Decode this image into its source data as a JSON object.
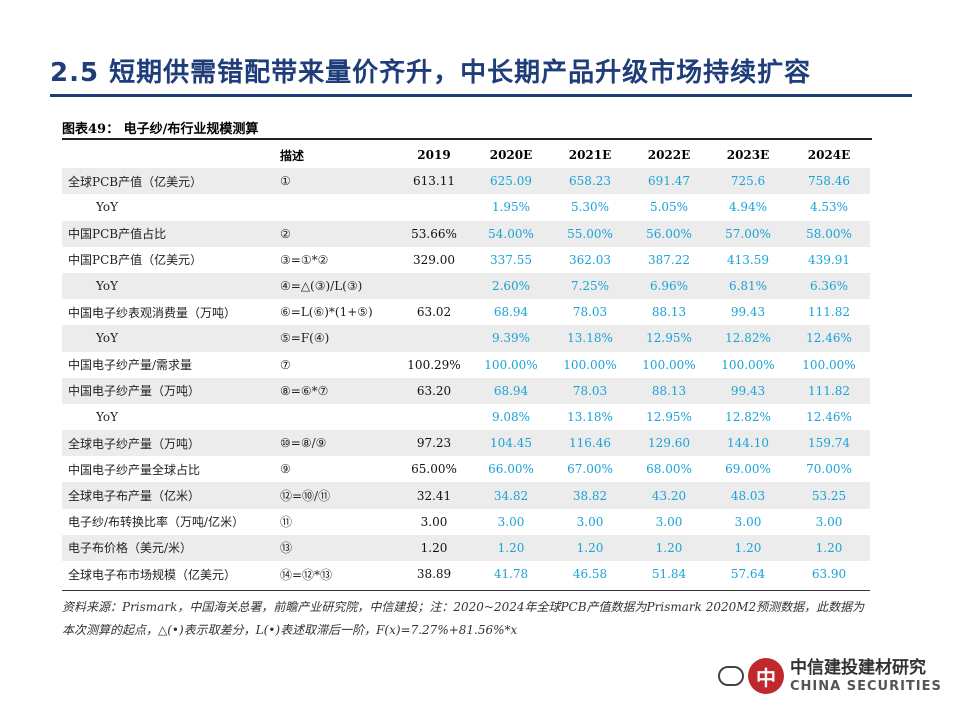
{
  "slide_title": "2.5 短期供需错配带来量价齐升，中长期产品升级市场持续扩容",
  "figure_caption": "图表49： 电子纱/布行业规模测算",
  "table": {
    "headers": [
      "",
      "描述",
      "2019",
      "2020E",
      "2021E",
      "2022E",
      "2023E",
      "2024E"
    ],
    "rows": [
      {
        "label": "全球PCB产值（亿美元）",
        "desc": "①",
        "values": [
          "613.11",
          "625.09",
          "658.23",
          "691.47",
          "725.6",
          "758.46"
        ],
        "shaded": true,
        "indent": false
      },
      {
        "label": "YoY",
        "desc": "",
        "values": [
          "",
          "1.95%",
          "5.30%",
          "5.05%",
          "4.94%",
          "4.53%"
        ],
        "shaded": false,
        "indent": true
      },
      {
        "label": "中国PCB产值占比",
        "desc": "②",
        "values": [
          "53.66%",
          "54.00%",
          "55.00%",
          "56.00%",
          "57.00%",
          "58.00%"
        ],
        "shaded": true,
        "indent": false
      },
      {
        "label": "中国PCB产值（亿美元）",
        "desc": "③=①*②",
        "values": [
          "329.00",
          "337.55",
          "362.03",
          "387.22",
          "413.59",
          "439.91"
        ],
        "shaded": false,
        "indent": false
      },
      {
        "label": "YoY",
        "desc": "④=△(③)/L(③)",
        "values": [
          "",
          "2.60%",
          "7.25%",
          "6.96%",
          "6.81%",
          "6.36%"
        ],
        "shaded": true,
        "indent": true
      },
      {
        "label": "中国电子纱表观消费量（万吨）",
        "desc": "⑥=L(⑥)*(1+⑤)",
        "values": [
          "63.02",
          "68.94",
          "78.03",
          "88.13",
          "99.43",
          "111.82"
        ],
        "shaded": false,
        "indent": false
      },
      {
        "label": "YoY",
        "desc": "⑤=F(④)",
        "values": [
          "",
          "9.39%",
          "13.18%",
          "12.95%",
          "12.82%",
          "12.46%"
        ],
        "shaded": true,
        "indent": true
      },
      {
        "label": "中国电子纱产量/需求量",
        "desc": "⑦",
        "values": [
          "100.29%",
          "100.00%",
          "100.00%",
          "100.00%",
          "100.00%",
          "100.00%"
        ],
        "shaded": false,
        "indent": false
      },
      {
        "label": "中国电子纱产量（万吨）",
        "desc": "⑧=⑥*⑦",
        "values": [
          "63.20",
          "68.94",
          "78.03",
          "88.13",
          "99.43",
          "111.82"
        ],
        "shaded": true,
        "indent": false
      },
      {
        "label": "YoY",
        "desc": "",
        "values": [
          "",
          "9.08%",
          "13.18%",
          "12.95%",
          "12.82%",
          "12.46%"
        ],
        "shaded": false,
        "indent": true
      },
      {
        "label": "全球电子纱产量（万吨）",
        "desc": "⑩=⑧/⑨",
        "values": [
          "97.23",
          "104.45",
          "116.46",
          "129.60",
          "144.10",
          "159.74"
        ],
        "shaded": true,
        "indent": false
      },
      {
        "label": "中国电子纱产量全球占比",
        "desc": "⑨",
        "values": [
          "65.00%",
          "66.00%",
          "67.00%",
          "68.00%",
          "69.00%",
          "70.00%"
        ],
        "shaded": false,
        "indent": false
      },
      {
        "label": "全球电子布产量（亿米）",
        "desc": "⑫=⑩/⑪",
        "values": [
          "32.41",
          "34.82",
          "38.82",
          "43.20",
          "48.03",
          "53.25"
        ],
        "shaded": true,
        "indent": false
      },
      {
        "label": "电子纱/布转换比率（万吨/亿米）",
        "desc": "⑪",
        "values": [
          "3.00",
          "3.00",
          "3.00",
          "3.00",
          "3.00",
          "3.00"
        ],
        "shaded": false,
        "indent": false
      },
      {
        "label": "电子布价格（美元/米）",
        "desc": "⑬",
        "values": [
          "1.20",
          "1.20",
          "1.20",
          "1.20",
          "1.20",
          "1.20"
        ],
        "shaded": true,
        "indent": false
      },
      {
        "label": "全球电子布市场规模（亿美元）",
        "desc": "⑭=⑫*⑬",
        "values": [
          "38.89",
          "41.78",
          "46.58",
          "51.84",
          "57.64",
          "63.90"
        ],
        "shaded": false,
        "indent": false
      }
    ]
  },
  "source_note": "资料来源：Prismark，中国海关总署，前瞻产业研究院，中信建投；注：2020~2024年全球PCB产值数据为Prismark 2020M2预测数据，此数据为本次测算的起点，△(•)表示取差分，L(•)表述取滞后一阶，F(x)=7.27%+81.56%*x",
  "watermark": {
    "seal_char": "中",
    "cn_text": "中信建投建材研究",
    "en_text": "CHINA SECURITIES"
  },
  "colors": {
    "title_blue": "#1f3d7a",
    "projection_blue": "#1aa3d9",
    "row_shade": "#ececec",
    "seal_red": "#c0282c"
  }
}
